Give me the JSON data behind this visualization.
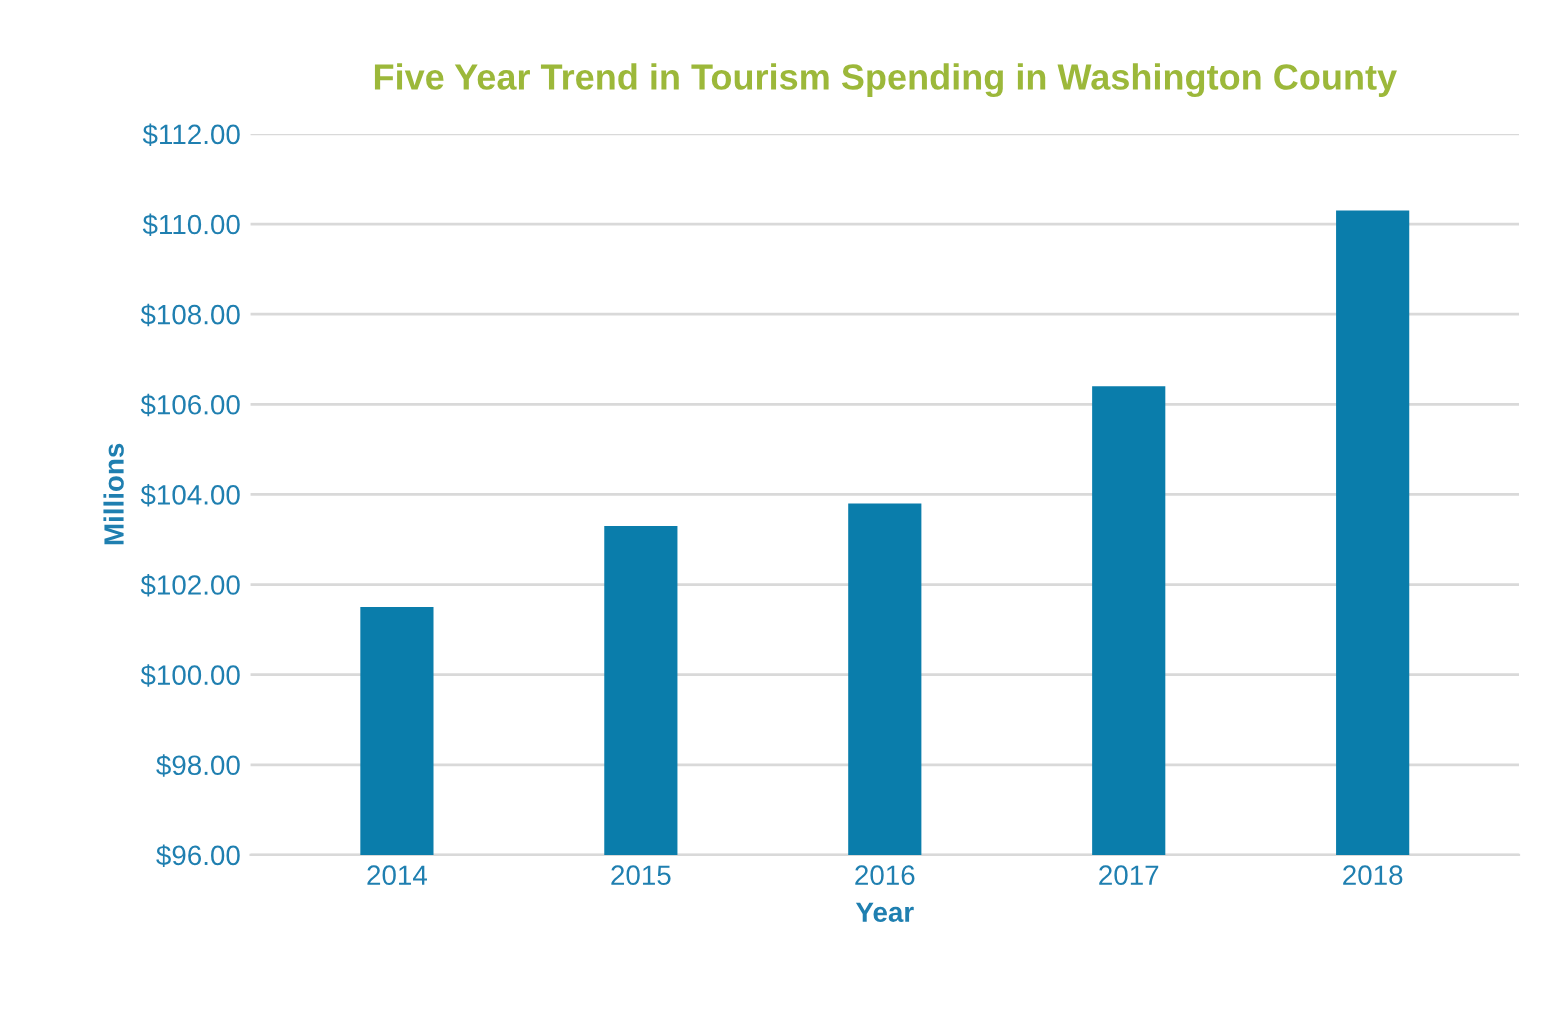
{
  "chart_data": {
    "type": "bar",
    "title": "Five Year Trend in Tourism Spending in Washington County",
    "xlabel": "Year",
    "ylabel": "Millions",
    "categories": [
      "2014",
      "2015",
      "2016",
      "2017",
      "2018"
    ],
    "values": [
      101.5,
      103.3,
      103.8,
      106.4,
      110.3
    ],
    "color": "#0a7dab",
    "ylim": [
      96,
      112
    ],
    "yticks": [
      {
        "value": 96,
        "label": "$96.00"
      },
      {
        "value": 98,
        "label": "$98.00"
      },
      {
        "value": 100,
        "label": "$100.00"
      },
      {
        "value": 102,
        "label": "$102.00"
      },
      {
        "value": 104,
        "label": "$104.00"
      },
      {
        "value": 106,
        "label": "$106.00"
      },
      {
        "value": 108,
        "label": "$108.00"
      },
      {
        "value": 110,
        "label": "$110.00"
      },
      {
        "value": 112,
        "label": "$112.00"
      }
    ],
    "grid": "y",
    "legend": false
  }
}
